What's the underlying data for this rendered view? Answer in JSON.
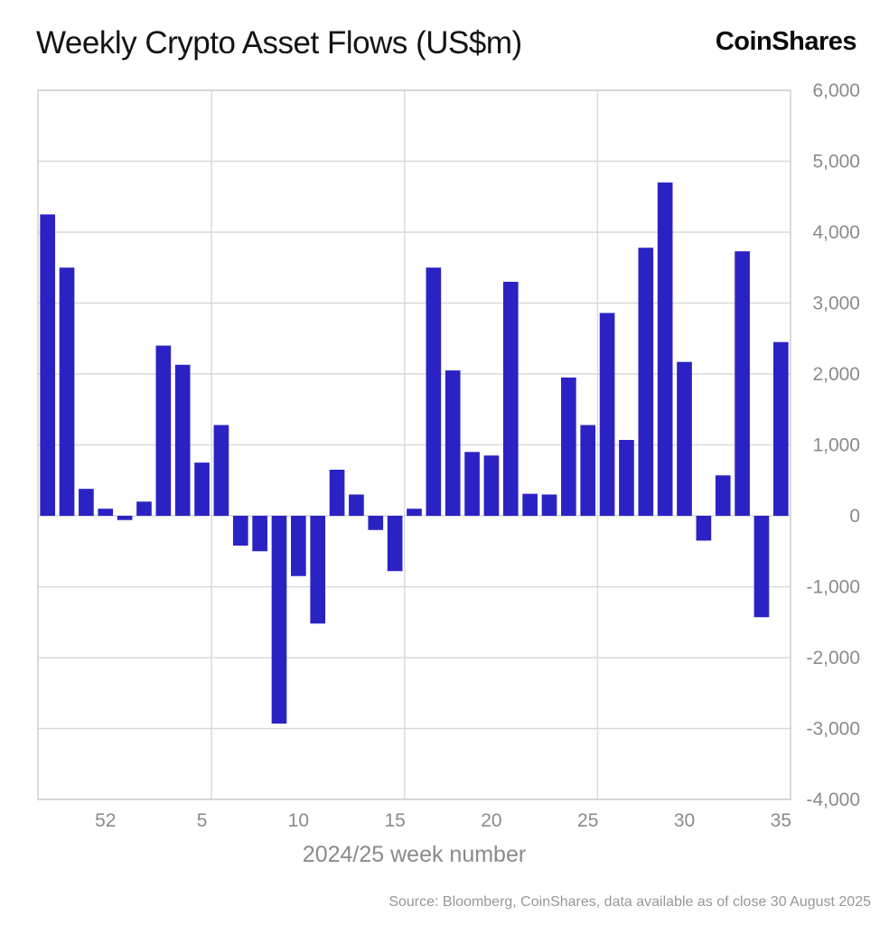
{
  "header": {
    "title": "Weekly Crypto Asset Flows (US$m)",
    "logo": "CoinShares"
  },
  "chart_data": {
    "type": "bar",
    "title": "Weekly Crypto Asset Flows (US$m)",
    "xlabel": "2024/25 week number",
    "ylabel": "",
    "ylim": [
      -4000,
      6000
    ],
    "y_tick_step": 1000,
    "grid": true,
    "legend": "none",
    "bar_color": "#2b22c4",
    "grid_color": "#d9d9d9",
    "border_color": "#cfcfcf",
    "tick_label_color": "#8a8a8a",
    "categories": [
      "49",
      "50",
      "51",
      "52",
      "1",
      "2",
      "3",
      "4",
      "5",
      "6",
      "7",
      "8",
      "9",
      "10",
      "11",
      "12",
      "13",
      "14",
      "15",
      "16",
      "17",
      "18",
      "19",
      "20",
      "21",
      "22",
      "23",
      "24",
      "25",
      "26",
      "27",
      "28",
      "29",
      "30",
      "31",
      "32",
      "33",
      "34",
      "35"
    ],
    "values": [
      4250,
      3500,
      380,
      100,
      -60,
      200,
      2400,
      2130,
      750,
      1280,
      -420,
      -500,
      -2930,
      -850,
      -1520,
      650,
      300,
      -200,
      -780,
      100,
      3500,
      2050,
      900,
      850,
      3300,
      310,
      300,
      1950,
      1280,
      2860,
      1070,
      3780,
      4700,
      2170,
      -350,
      570,
      3730,
      -1430,
      2450
    ],
    "x_tick_labels": [
      "52",
      "5",
      "10",
      "15",
      "20",
      "25",
      "30",
      "35"
    ],
    "x_tick_indices": [
      3,
      8,
      13,
      18,
      23,
      28,
      33,
      38
    ],
    "v_gridline_indices": [
      9,
      19,
      29
    ],
    "y_tick_labels": [
      "6,000",
      "5,000",
      "4,000",
      "3,000",
      "2,000",
      "1,000",
      "0",
      "-1,000",
      "-2,000",
      "-3,000",
      "-4,000"
    ]
  },
  "footer": {
    "source": "Source: Bloomberg, CoinShares, data available as of close 30 August 2025"
  }
}
